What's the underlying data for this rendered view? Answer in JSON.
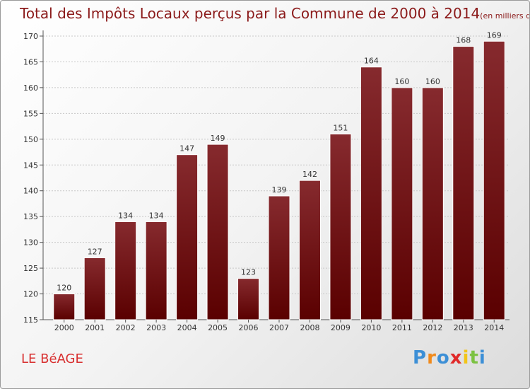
{
  "title": "Total des Impôts Locaux perçus par la Commune de 2000 à 2014",
  "title_unit": "(en milliers d'€)",
  "commune": "LE BéAGE",
  "logo": {
    "letters": [
      "P",
      "r",
      "o",
      "x",
      "i",
      "t",
      "i"
    ],
    "colors": [
      "#3c8fd6",
      "#f08a1c",
      "#3c8fd6",
      "#e02a2a",
      "#f2c518",
      "#7cc242",
      "#3c8fd6"
    ]
  },
  "colors": {
    "bar_top": "#862a2e",
    "bar_bottom": "#5a0000",
    "bar_stroke": "#ffffff",
    "title": "#8b1a1a",
    "commune": "#d83030"
  },
  "chart_data": {
    "type": "bar",
    "title": "Total des Impôts Locaux perçus par la Commune de 2000 à 2014",
    "xlabel": "",
    "ylabel": "",
    "categories": [
      "2000",
      "2001",
      "2002",
      "2003",
      "2004",
      "2005",
      "2006",
      "2007",
      "2008",
      "2009",
      "2010",
      "2011",
      "2012",
      "2013",
      "2014"
    ],
    "values": [
      120,
      127,
      134,
      134,
      147,
      149,
      123,
      139,
      142,
      151,
      164,
      160,
      160,
      168,
      169
    ],
    "ylim": [
      115,
      170
    ],
    "yticks": [
      115,
      120,
      125,
      130,
      135,
      140,
      145,
      150,
      155,
      160,
      165,
      170
    ],
    "grid": true,
    "legend": "none"
  }
}
